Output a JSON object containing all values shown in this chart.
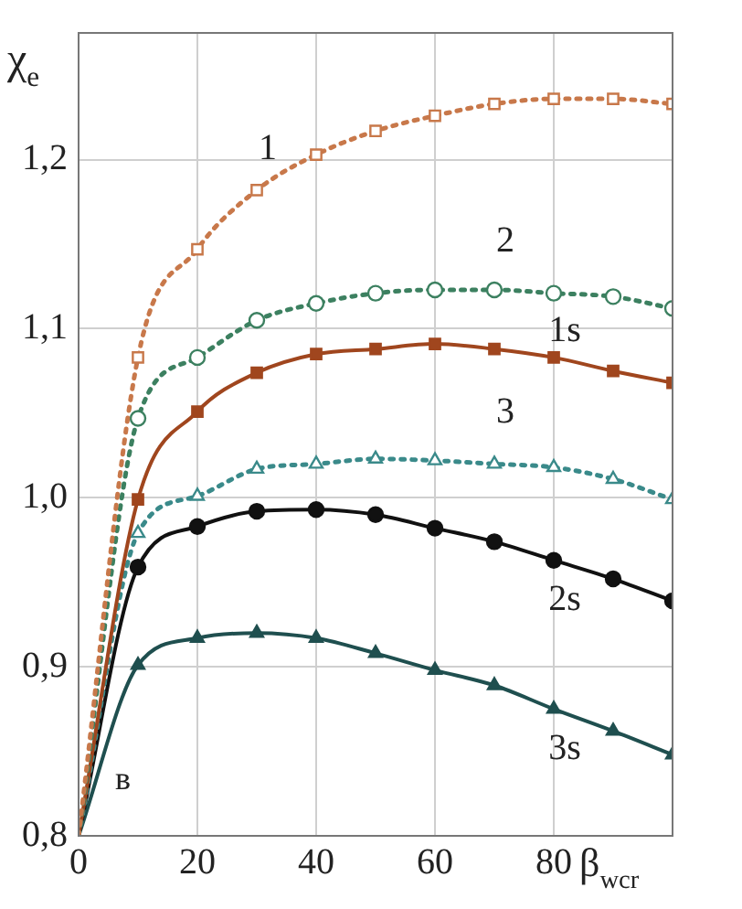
{
  "chart_data": {
    "type": "line",
    "xlabel": "β$_{wcr}$",
    "ylabel": "χ$_{e}$",
    "x": [
      0,
      10,
      20,
      30,
      40,
      50,
      60,
      70,
      80,
      90,
      100
    ],
    "series": [
      {
        "name": "1",
        "color": "#c8784a",
        "line_style": "dotted",
        "marker": "square",
        "values": [
          0.8,
          1.083,
          1.147,
          1.182,
          1.203,
          1.217,
          1.226,
          1.233,
          1.236,
          1.236,
          1.233
        ]
      },
      {
        "name": "2",
        "color": "#3c8060",
        "line_style": "dotted",
        "marker": "circle",
        "values": [
          0.8,
          1.047,
          1.083,
          1.105,
          1.115,
          1.121,
          1.123,
          1.123,
          1.121,
          1.119,
          1.112
        ]
      },
      {
        "name": "1s",
        "color": "#a0461e",
        "line_style": "solid",
        "marker": "square",
        "values": [
          0.8,
          0.999,
          1.051,
          1.074,
          1.085,
          1.088,
          1.091,
          1.088,
          1.083,
          1.075,
          1.068
        ]
      },
      {
        "name": "3",
        "color": "#3a8a8a",
        "line_style": "dotted",
        "marker": "triangle",
        "values": [
          0.8,
          0.979,
          1.001,
          1.017,
          1.02,
          1.023,
          1.022,
          1.02,
          1.018,
          1.011,
          0.999
        ]
      },
      {
        "name": "2s",
        "color": "#111111",
        "line_style": "solid",
        "marker": "circle",
        "values": [
          0.8,
          0.959,
          0.983,
          0.992,
          0.993,
          0.99,
          0.982,
          0.974,
          0.963,
          0.952,
          0.939
        ]
      },
      {
        "name": "3s",
        "color": "#1f4f4f",
        "line_style": "solid",
        "marker": "triangle",
        "values": [
          0.8,
          0.901,
          0.917,
          0.92,
          0.917,
          0.908,
          0.898,
          0.889,
          0.875,
          0.862,
          0.848
        ]
      }
    ],
    "xlim": [
      0,
      100
    ],
    "xticks": [
      0,
      20,
      40,
      60,
      80
    ],
    "ylim": [
      0.8,
      1.275
    ],
    "yticks": [
      {
        "value": 0.8,
        "label": "0,8"
      },
      {
        "value": 0.9,
        "label": "0,9"
      },
      {
        "value": 1.0,
        "label": "1,0"
      },
      {
        "value": 1.1,
        "label": "1,1"
      },
      {
        "value": 1.2,
        "label": "1,2"
      }
    ],
    "grid": true,
    "legend": false,
    "annotations": [
      "в"
    ]
  }
}
